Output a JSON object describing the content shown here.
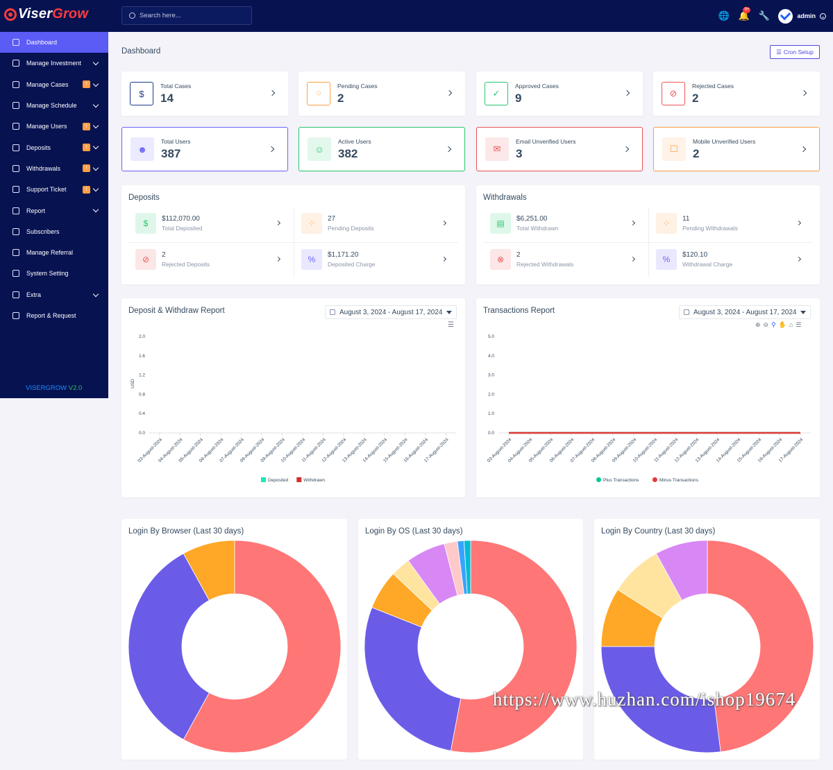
{
  "brand": {
    "name_a": "Viser",
    "name_b": "Grow",
    "version_a": "VISERGROW",
    "version_b": "V2.0"
  },
  "search": {
    "placeholder": "Search here..."
  },
  "topbar": {
    "notification_count": "9+",
    "username": "admin"
  },
  "sidebar": {
    "items": [
      {
        "label": "Dashboard",
        "icon": "home-icon",
        "active": true,
        "badge": "",
        "chevron": false
      },
      {
        "label": "Manage Investment",
        "icon": "list-icon",
        "badge": "",
        "chevron": true
      },
      {
        "label": "Manage Cases",
        "icon": "file-icon",
        "badge": "!",
        "chevron": true
      },
      {
        "label": "Manage Schedule",
        "icon": "clock-icon",
        "badge": "",
        "chevron": true
      },
      {
        "label": "Manage Users",
        "icon": "users-icon",
        "badge": "!",
        "chevron": true
      },
      {
        "label": "Deposits",
        "icon": "file-icon",
        "badge": "!",
        "chevron": true
      },
      {
        "label": "Withdrawals",
        "icon": "bank-icon",
        "badge": "!",
        "chevron": true
      },
      {
        "label": "Support Ticket",
        "icon": "ticket-icon",
        "badge": "!",
        "chevron": true
      },
      {
        "label": "Report",
        "icon": "list-icon",
        "badge": "",
        "chevron": true
      },
      {
        "label": "Subscribers",
        "icon": "thumb-icon",
        "badge": "",
        "chevron": false
      },
      {
        "label": "Manage Referral",
        "icon": "referral-icon",
        "badge": "",
        "chevron": false
      },
      {
        "label": "System Setting",
        "icon": "gear-icon",
        "badge": "",
        "chevron": false
      },
      {
        "label": "Extra",
        "icon": "server-icon",
        "badge": "",
        "chevron": true
      },
      {
        "label": "Report & Request",
        "icon": "bug-icon",
        "badge": "",
        "chevron": false
      }
    ]
  },
  "page": {
    "title": "Dashboard",
    "cron_label": "Cron Setup"
  },
  "stats": [
    {
      "label": "Total Cases",
      "value": "14",
      "icon": "dollar-hand-icon",
      "color": "#1e3a8a"
    },
    {
      "label": "Pending Cases",
      "value": "2",
      "icon": "spinner-icon",
      "color": "#ff9f43"
    },
    {
      "label": "Approved Cases",
      "value": "9",
      "icon": "check-icon",
      "color": "#28c76f"
    },
    {
      "label": "Rejected Cases",
      "value": "2",
      "icon": "ban-icon",
      "color": "#ea5455"
    },
    {
      "label": "Total Users",
      "value": "387",
      "icon": "users-icon",
      "color": "#6b63f5"
    },
    {
      "label": "Active Users",
      "value": "382",
      "icon": "user-check-icon",
      "color": "#28c76f"
    },
    {
      "label": "Email Unverified Users",
      "value": "3",
      "icon": "envelope-icon",
      "color": "#ea5455"
    },
    {
      "label": "Mobile Unverified Users",
      "value": "2",
      "icon": "mobile-off-icon",
      "color": "#ff9f43"
    }
  ],
  "deposits": {
    "title": "Deposits",
    "items": [
      {
        "value": "$112,070.00",
        "label": "Total Deposited",
        "icon": "dollar-hand-icon",
        "color": "#28c76f"
      },
      {
        "value": "27",
        "label": "Pending Deposits",
        "icon": "spinner-icon",
        "color": "#ff9f43"
      },
      {
        "value": "2",
        "label": "Rejected Deposits",
        "icon": "ban-icon",
        "color": "#ea5455"
      },
      {
        "value": "$1,171.20",
        "label": "Deposited Charge",
        "icon": "percent-icon",
        "color": "#6b63f5"
      }
    ]
  },
  "withdrawals": {
    "title": "Withdrawals",
    "items": [
      {
        "value": "$6,251.00",
        "label": "Total Withdrawn",
        "icon": "money-icon",
        "color": "#28c76f"
      },
      {
        "value": "11",
        "label": "Pending Withdrawals",
        "icon": "spinner-icon",
        "color": "#ff9f43"
      },
      {
        "value": "2",
        "label": "Rejected Withdrawals",
        "icon": "x-circle-icon",
        "color": "#ea5455"
      },
      {
        "value": "$120.10",
        "label": "Withdrawal Charge",
        "icon": "percent-icon",
        "color": "#6b63f5"
      }
    ]
  },
  "date_range": "August 3, 2024 - August 17, 2024",
  "chart_data": [
    {
      "type": "bar",
      "title": "Deposit & Withdraw Report",
      "ylabel": "USD",
      "ylim": [
        0,
        2
      ],
      "yticks": [
        "2.0",
        "1.6",
        "1.2",
        "0.8",
        "0.4",
        "0.0"
      ],
      "categories": [
        "03-August-2024",
        "04-August-2024",
        "05-August-2024",
        "06-August-2024",
        "07-August-2024",
        "08-August-2024",
        "09-August-2024",
        "10-August-2024",
        "11-August-2024",
        "12-August-2024",
        "13-August-2024",
        "14-August-2024",
        "15-August-2024",
        "16-August-2024",
        "17-August-2024"
      ],
      "series": [
        {
          "name": "Deposited",
          "color": "#1de9b6",
          "values": [
            0,
            0,
            0,
            0,
            0,
            0,
            0,
            0,
            0,
            0,
            0,
            0,
            0,
            0,
            0
          ]
        },
        {
          "name": "Withdrawn",
          "color": "#d32f2f",
          "values": [
            0,
            0,
            0,
            0,
            0,
            0,
            0,
            0,
            0,
            0,
            0,
            0,
            0,
            0,
            0
          ]
        }
      ],
      "legend": "bottom"
    },
    {
      "type": "area",
      "title": "Transactions Report",
      "ylim": [
        0,
        5
      ],
      "yticks": [
        "5.0",
        "4.0",
        "3.0",
        "2.0",
        "1.0",
        "0.0"
      ],
      "categories": [
        "03-August-2024",
        "04-August-2024",
        "05-August-2024",
        "06-August-2024",
        "07-August-2024",
        "08-August-2024",
        "09-August-2024",
        "10-August-2024",
        "11-August-2024",
        "12-August-2024",
        "13-August-2024",
        "14-August-2024",
        "15-August-2024",
        "16-August-2024",
        "17-August-2024"
      ],
      "series": [
        {
          "name": "Plus Transactions",
          "color": "#00c896",
          "values": [
            0,
            0,
            0,
            0,
            0,
            0,
            0,
            0,
            0,
            0,
            0,
            0,
            0,
            0,
            0
          ]
        },
        {
          "name": "Minus Transactions",
          "color": "#e53935",
          "values": [
            0,
            0,
            0,
            0,
            0,
            0,
            0,
            0,
            0,
            0,
            0,
            0,
            0,
            0,
            0
          ]
        }
      ],
      "legend": "bottom"
    },
    {
      "type": "pie",
      "title": "Login By Browser (Last 30 days)",
      "donut": true,
      "slices": [
        {
          "value": 58,
          "color": "#ff7676"
        },
        {
          "value": 34,
          "color": "#6b5ce7"
        },
        {
          "value": 8,
          "color": "#ffa726"
        }
      ]
    },
    {
      "type": "pie",
      "title": "Login By OS (Last 30 days)",
      "donut": true,
      "slices": [
        {
          "value": 53,
          "color": "#ff7676"
        },
        {
          "value": 28,
          "color": "#6b5ce7"
        },
        {
          "value": 6,
          "color": "#ffa726"
        },
        {
          "value": 3,
          "color": "#ffe4a0"
        },
        {
          "value": 6,
          "color": "#d888f5"
        },
        {
          "value": 2,
          "color": "#ffc9c9"
        },
        {
          "value": 1,
          "color": "#38a3ff"
        },
        {
          "value": 1,
          "color": "#00bcd4"
        }
      ]
    },
    {
      "type": "pie",
      "title": "Login By Country (Last 30 days)",
      "donut": true,
      "slices": [
        {
          "value": 48,
          "color": "#ff7676"
        },
        {
          "value": 27,
          "color": "#6b5ce7"
        },
        {
          "value": 9,
          "color": "#ffa726"
        },
        {
          "value": 8,
          "color": "#ffe4a0"
        },
        {
          "value": 8,
          "color": "#d888f5"
        }
      ]
    }
  ],
  "watermark": "https://www.huzhan.com/ishop19674"
}
